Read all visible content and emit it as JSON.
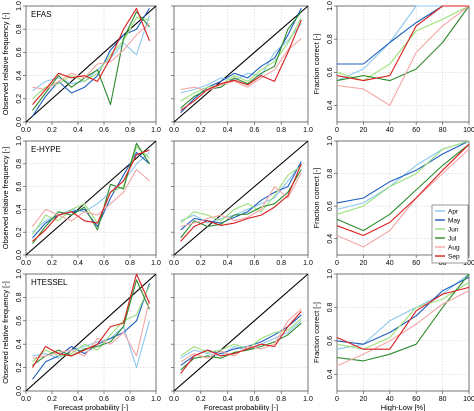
{
  "figure": {
    "row_labels": [
      "EFAS",
      "E-HYPE",
      "HTESSEL"
    ],
    "left_ylabel": "Observed relative frequency [-]",
    "right_ylabel": "Fraction correct [-]",
    "xlabels": [
      "Forecast probability [-]",
      "Forecast probability [-]",
      "High-Low [%]"
    ]
  },
  "legend": {
    "entries": [
      {
        "label": "Apr",
        "color": "#8ec8f0"
      },
      {
        "label": "May",
        "color": "#1f5fbf"
      },
      {
        "label": "Jun",
        "color": "#9be07a"
      },
      {
        "label": "Jul",
        "color": "#2e8b2e"
      },
      {
        "label": "Aug",
        "color": "#f4a6a6"
      },
      {
        "label": "Sep",
        "color": "#d81e1e"
      }
    ]
  },
  "chart_data": [
    {
      "id": "efas-reliability",
      "type": "line",
      "xlabel": "",
      "ylabel": "Observed relative frequency [-]",
      "label": "EFAS",
      "xlim": [
        0,
        1
      ],
      "ylim": [
        0,
        1
      ],
      "xticks": [
        "0.0",
        "0.2",
        "0.4",
        "0.6",
        "0.8",
        "1.0"
      ],
      "yticks": [
        "0.0",
        "0.2",
        "0.4",
        "0.6",
        "0.8",
        "1.0"
      ],
      "diagonal": true,
      "x": [
        0.05,
        0.15,
        0.25,
        0.35,
        0.45,
        0.55,
        0.65,
        0.75,
        0.85,
        0.95
      ],
      "series": [
        {
          "name": "Apr",
          "values": [
            0.27,
            0.35,
            0.38,
            0.33,
            0.35,
            0.45,
            0.55,
            0.68,
            0.58,
            0.92
          ]
        },
        {
          "name": "May",
          "values": [
            0.05,
            0.22,
            0.35,
            0.25,
            0.3,
            0.4,
            0.62,
            0.75,
            0.8,
            0.98
          ]
        },
        {
          "name": "Jun",
          "values": [
            0.2,
            0.3,
            0.33,
            0.4,
            0.35,
            0.42,
            0.58,
            0.7,
            0.9,
            0.88
          ]
        },
        {
          "name": "Jul",
          "values": [
            0.1,
            0.25,
            0.4,
            0.3,
            0.38,
            0.45,
            0.15,
            0.72,
            0.95,
            0.82
          ]
        },
        {
          "name": "Aug",
          "values": [
            0.3,
            0.28,
            0.35,
            0.42,
            0.38,
            0.5,
            0.52,
            0.62,
            0.75,
            0.85
          ]
        },
        {
          "name": "Sep",
          "values": [
            0.15,
            0.28,
            0.42,
            0.38,
            0.4,
            0.35,
            0.55,
            0.8,
            0.98,
            0.7
          ]
        }
      ]
    },
    {
      "id": "efas-reliability-2",
      "type": "line",
      "xlabel": "",
      "ylabel": "",
      "label": "",
      "xlim": [
        0,
        1
      ],
      "ylim": [
        0,
        1
      ],
      "xticks": [
        "0.0",
        "0.2",
        "0.4",
        "0.6",
        "0.8",
        "1.0"
      ],
      "yticks": [
        "0.0",
        "0.2",
        "0.4",
        "0.6",
        "0.8",
        "1.0"
      ],
      "diagonal": true,
      "x": [
        0.05,
        0.15,
        0.25,
        0.35,
        0.45,
        0.55,
        0.65,
        0.75,
        0.85,
        0.95
      ],
      "series": [
        {
          "name": "Apr",
          "values": [
            0.25,
            0.28,
            0.32,
            0.38,
            0.36,
            0.42,
            0.4,
            0.6,
            0.7,
            0.85
          ]
        },
        {
          "name": "May",
          "values": [
            0.08,
            0.2,
            0.3,
            0.35,
            0.42,
            0.38,
            0.48,
            0.55,
            0.75,
            0.98
          ]
        },
        {
          "name": "Jun",
          "values": [
            0.18,
            0.25,
            0.3,
            0.32,
            0.4,
            0.35,
            0.45,
            0.52,
            0.68,
            0.9
          ]
        },
        {
          "name": "Jul",
          "values": [
            0.12,
            0.22,
            0.28,
            0.3,
            0.38,
            0.33,
            0.42,
            0.48,
            0.8,
            0.95
          ]
        },
        {
          "name": "Aug",
          "values": [
            0.28,
            0.3,
            0.27,
            0.32,
            0.35,
            0.3,
            0.38,
            0.45,
            0.62,
            0.72
          ]
        },
        {
          "name": "Sep",
          "values": [
            0.1,
            0.18,
            0.28,
            0.33,
            0.36,
            0.32,
            0.4,
            0.35,
            0.6,
            0.88
          ]
        }
      ]
    },
    {
      "id": "efas-fraction-correct",
      "type": "line",
      "xlabel": "",
      "ylabel": "Fraction correct [-]",
      "label": "",
      "xlim": [
        0,
        100
      ],
      "ylim": [
        0.3,
        1.0
      ],
      "xticks": [
        "0",
        "20",
        "40",
        "60",
        "80",
        "100"
      ],
      "yticks": [
        "0.4",
        "0.6",
        "0.8",
        "1.0"
      ],
      "diagonal": false,
      "x": [
        0,
        20,
        40,
        60,
        80,
        100
      ],
      "series": [
        {
          "name": "Apr",
          "values": [
            0.55,
            0.62,
            0.78,
            1.0,
            1.0,
            1.0
          ]
        },
        {
          "name": "May",
          "values": [
            0.65,
            0.65,
            0.78,
            0.9,
            1.0,
            1.0
          ]
        },
        {
          "name": "Jun",
          "values": [
            0.6,
            0.55,
            0.65,
            0.85,
            0.92,
            1.0
          ]
        },
        {
          "name": "Jul",
          "values": [
            0.55,
            0.58,
            0.55,
            0.62,
            0.78,
            1.0
          ]
        },
        {
          "name": "Aug",
          "values": [
            0.52,
            0.5,
            0.4,
            0.72,
            0.88,
            1.0
          ]
        },
        {
          "name": "Sep",
          "values": [
            0.58,
            0.55,
            0.58,
            0.88,
            1.0,
            1.0
          ]
        }
      ]
    },
    {
      "id": "ehype-reliability",
      "type": "line",
      "xlabel": "",
      "ylabel": "Observed relative frequency [-]",
      "label": "E-HYPE",
      "xlim": [
        0,
        1
      ],
      "ylim": [
        0,
        1
      ],
      "xticks": [
        "0.0",
        "0.2",
        "0.4",
        "0.6",
        "0.8",
        "1.0"
      ],
      "yticks": [
        "0.0",
        "0.2",
        "0.4",
        "0.6",
        "0.8",
        "1.0"
      ],
      "diagonal": true,
      "x": [
        0.05,
        0.15,
        0.25,
        0.35,
        0.45,
        0.55,
        0.65,
        0.75,
        0.85,
        0.95
      ],
      "series": [
        {
          "name": "Apr",
          "values": [
            0.2,
            0.3,
            0.35,
            0.4,
            0.38,
            0.45,
            0.55,
            0.65,
            0.8,
            0.9
          ]
        },
        {
          "name": "May",
          "values": [
            0.15,
            0.28,
            0.35,
            0.38,
            0.4,
            0.25,
            0.5,
            0.7,
            0.9,
            0.8
          ]
        },
        {
          "name": "Jun",
          "values": [
            0.18,
            0.35,
            0.3,
            0.4,
            0.45,
            0.28,
            0.55,
            0.6,
            0.95,
            0.85
          ]
        },
        {
          "name": "Jul",
          "values": [
            0.1,
            0.25,
            0.38,
            0.35,
            0.42,
            0.22,
            0.62,
            0.58,
            0.98,
            0.8
          ]
        },
        {
          "name": "Aug",
          "values": [
            0.25,
            0.4,
            0.35,
            0.3,
            0.38,
            0.35,
            0.45,
            0.55,
            0.75,
            0.65
          ]
        },
        {
          "name": "Sep",
          "values": [
            0.12,
            0.22,
            0.35,
            0.38,
            0.3,
            0.28,
            0.55,
            0.65,
            0.88,
            0.92
          ]
        }
      ]
    },
    {
      "id": "ehype-reliability-2",
      "type": "line",
      "xlabel": "",
      "ylabel": "",
      "label": "",
      "xlim": [
        0,
        1
      ],
      "ylim": [
        0,
        1
      ],
      "xticks": [
        "0.0",
        "0.2",
        "0.4",
        "0.6",
        "0.8",
        "1.0"
      ],
      "yticks": [
        "0.0",
        "0.2",
        "0.4",
        "0.6",
        "0.8",
        "1.0"
      ],
      "diagonal": true,
      "x": [
        0.05,
        0.15,
        0.25,
        0.35,
        0.45,
        0.55,
        0.65,
        0.75,
        0.85,
        0.95
      ],
      "series": [
        {
          "name": "Apr",
          "values": [
            0.3,
            0.35,
            0.28,
            0.32,
            0.35,
            0.4,
            0.45,
            0.5,
            0.65,
            0.8
          ]
        },
        {
          "name": "May",
          "values": [
            0.22,
            0.32,
            0.3,
            0.28,
            0.33,
            0.38,
            0.48,
            0.55,
            0.6,
            0.82
          ]
        },
        {
          "name": "Jun",
          "values": [
            0.28,
            0.38,
            0.35,
            0.3,
            0.4,
            0.45,
            0.38,
            0.52,
            0.7,
            0.78
          ]
        },
        {
          "name": "Jul",
          "values": [
            0.15,
            0.3,
            0.25,
            0.27,
            0.35,
            0.36,
            0.42,
            0.45,
            0.55,
            0.75
          ]
        },
        {
          "name": "Aug",
          "values": [
            0.25,
            0.28,
            0.32,
            0.35,
            0.3,
            0.33,
            0.4,
            0.6,
            0.5,
            0.72
          ]
        },
        {
          "name": "Sep",
          "values": [
            0.12,
            0.25,
            0.3,
            0.26,
            0.28,
            0.32,
            0.35,
            0.42,
            0.52,
            0.8
          ]
        }
      ]
    },
    {
      "id": "ehype-fraction-correct",
      "type": "line",
      "xlabel": "",
      "ylabel": "Fraction correct [-]",
      "label": "",
      "xlim": [
        0,
        100
      ],
      "ylim": [
        0.3,
        1.0
      ],
      "xticks": [
        "0",
        "20",
        "40",
        "60",
        "80",
        "100"
      ],
      "yticks": [
        "0.4",
        "0.6",
        "0.8",
        "1.0"
      ],
      "diagonal": false,
      "x": [
        0,
        20,
        40,
        60,
        80,
        100
      ],
      "series": [
        {
          "name": "Apr",
          "values": [
            0.58,
            0.62,
            0.72,
            0.85,
            0.95,
            1.0
          ]
        },
        {
          "name": "May",
          "values": [
            0.62,
            0.65,
            0.75,
            0.82,
            0.92,
            1.0
          ]
        },
        {
          "name": "Jun",
          "values": [
            0.55,
            0.6,
            0.72,
            0.8,
            0.95,
            1.0
          ]
        },
        {
          "name": "Jul",
          "values": [
            0.52,
            0.45,
            0.55,
            0.7,
            0.85,
            0.98
          ]
        },
        {
          "name": "Aug",
          "values": [
            0.42,
            0.35,
            0.45,
            0.65,
            0.8,
            0.95
          ]
        },
        {
          "name": "Sep",
          "values": [
            0.48,
            0.42,
            0.5,
            0.65,
            0.82,
            0.98
          ]
        }
      ]
    },
    {
      "id": "htessel-reliability",
      "type": "line",
      "xlabel": "Forecast probability [-]",
      "ylabel": "Observed relative frequency [-]",
      "label": "HTESSEL",
      "xlim": [
        0,
        1
      ],
      "ylim": [
        0,
        1
      ],
      "xticks": [
        "0.0",
        "0.2",
        "0.4",
        "0.6",
        "0.8",
        "1.0"
      ],
      "yticks": [
        "0.0",
        "0.2",
        "0.4",
        "0.6",
        "0.8",
        "1.0"
      ],
      "diagonal": true,
      "x": [
        0.05,
        0.15,
        0.25,
        0.35,
        0.45,
        0.55,
        0.65,
        0.75,
        0.85,
        0.95
      ],
      "series": [
        {
          "name": "Apr",
          "values": [
            0.3,
            0.32,
            0.28,
            0.35,
            0.38,
            0.42,
            0.45,
            0.55,
            0.2,
            0.6
          ]
        },
        {
          "name": "May",
          "values": [
            0.1,
            0.25,
            0.3,
            0.38,
            0.32,
            0.4,
            0.45,
            0.5,
            0.6,
            0.92
          ]
        },
        {
          "name": "Jun",
          "values": [
            0.25,
            0.35,
            0.3,
            0.32,
            0.4,
            0.35,
            0.48,
            0.6,
            0.65,
            0.9
          ]
        },
        {
          "name": "Jul",
          "values": [
            0.22,
            0.3,
            0.35,
            0.3,
            0.36,
            0.38,
            0.42,
            0.55,
            0.95,
            0.7
          ]
        },
        {
          "name": "Aug",
          "values": [
            0.28,
            0.3,
            0.33,
            0.35,
            0.3,
            0.45,
            0.4,
            0.5,
            0.3,
            0.78
          ]
        },
        {
          "name": "Sep",
          "values": [
            0.2,
            0.38,
            0.32,
            0.3,
            0.35,
            0.4,
            0.55,
            0.58,
            1.0,
            0.75
          ]
        }
      ]
    },
    {
      "id": "htessel-reliability-2",
      "type": "line",
      "xlabel": "Forecast probability [-]",
      "ylabel": "",
      "label": "",
      "xlim": [
        0,
        1
      ],
      "ylim": [
        0,
        1
      ],
      "xticks": [
        "0.0",
        "0.2",
        "0.4",
        "0.6",
        "0.8",
        "1.0"
      ],
      "yticks": [
        "0.0",
        "0.2",
        "0.4",
        "0.6",
        "0.8",
        "1.0"
      ],
      "diagonal": true,
      "x": [
        0.05,
        0.15,
        0.25,
        0.35,
        0.45,
        0.55,
        0.65,
        0.75,
        0.85,
        0.95
      ],
      "series": [
        {
          "name": "Apr",
          "values": [
            0.28,
            0.35,
            0.32,
            0.3,
            0.38,
            0.35,
            0.4,
            0.45,
            0.5,
            0.6
          ]
        },
        {
          "name": "May",
          "values": [
            0.22,
            0.3,
            0.35,
            0.32,
            0.36,
            0.38,
            0.42,
            0.48,
            0.55,
            0.65
          ]
        },
        {
          "name": "Jun",
          "values": [
            0.3,
            0.38,
            0.33,
            0.35,
            0.4,
            0.36,
            0.45,
            0.5,
            0.52,
            0.62
          ]
        },
        {
          "name": "Jul",
          "values": [
            0.18,
            0.28,
            0.3,
            0.28,
            0.33,
            0.35,
            0.38,
            0.42,
            0.48,
            0.58
          ]
        },
        {
          "name": "Aug",
          "values": [
            0.25,
            0.32,
            0.28,
            0.34,
            0.3,
            0.38,
            0.36,
            0.4,
            0.6,
            0.7
          ]
        },
        {
          "name": "Sep",
          "values": [
            0.15,
            0.3,
            0.35,
            0.3,
            0.32,
            0.36,
            0.4,
            0.38,
            0.55,
            0.68
          ]
        }
      ]
    },
    {
      "id": "htessel-fraction-correct",
      "type": "line",
      "xlabel": "High-Low [%]",
      "ylabel": "Fraction correct [-]",
      "label": "",
      "xlim": [
        0,
        100
      ],
      "ylim": [
        0.3,
        1.0
      ],
      "xticks": [
        "0",
        "20",
        "40",
        "60",
        "80",
        "100"
      ],
      "yticks": [
        "0.4",
        "0.6",
        "0.8",
        "1.0"
      ],
      "diagonal": false,
      "x": [
        0,
        20,
        40,
        60,
        80,
        100
      ],
      "series": [
        {
          "name": "Apr",
          "values": [
            0.55,
            0.58,
            0.72,
            0.8,
            0.88,
            1.0
          ]
        },
        {
          "name": "May",
          "values": [
            0.6,
            0.58,
            0.65,
            0.75,
            0.9,
            0.98
          ]
        },
        {
          "name": "Jun",
          "values": [
            0.58,
            0.55,
            0.62,
            0.8,
            0.85,
            0.95
          ]
        },
        {
          "name": "Jul",
          "values": [
            0.5,
            0.48,
            0.52,
            0.58,
            0.8,
            1.0
          ]
        },
        {
          "name": "Aug",
          "values": [
            0.45,
            0.52,
            0.6,
            0.7,
            0.82,
            0.9
          ]
        },
        {
          "name": "Sep",
          "values": [
            0.62,
            0.55,
            0.55,
            0.78,
            0.88,
            0.92
          ]
        }
      ]
    }
  ]
}
